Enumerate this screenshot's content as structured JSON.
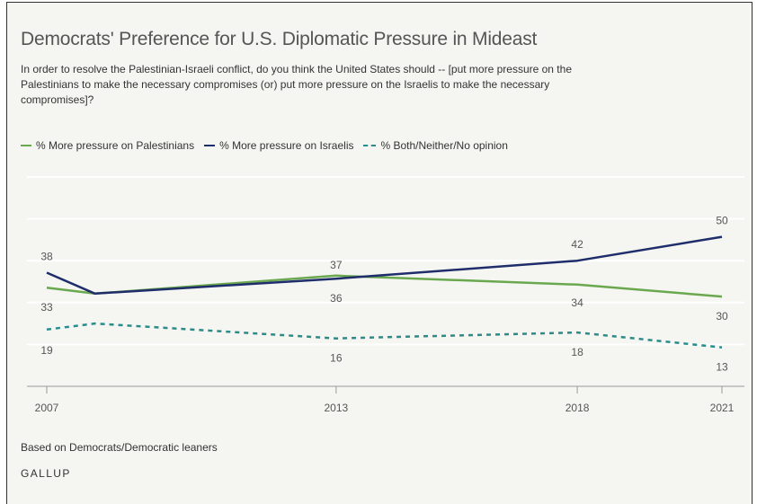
{
  "title": "Democrats' Preference for U.S. Diplomatic Pressure in Mideast",
  "question": "In order to resolve the Palestinian-Israeli conflict, do you think the United States should -- [put more pressure on the Palestinians to make the necessary compromises (or) put more pressure on the Israelis to make the necessary compromises]?",
  "footer_note": "Based on Democrats/Democratic leaners",
  "brand": "GALLUP",
  "colors": {
    "background": "#f5f6f1",
    "green": "#6aa84f",
    "navy": "#1f2d6b",
    "teal": "#2a8c8a",
    "grid": "#ffffff",
    "axis": "#999999"
  },
  "chart_data": {
    "type": "line",
    "x_tick_labels": [
      "2007",
      "2013",
      "2018",
      "2021"
    ],
    "xlim": [
      2007,
      2021
    ],
    "ylim": [
      0,
      70
    ],
    "grid": true,
    "legend_placement": "top-left",
    "series": [
      {
        "name": "% More pressure on Palestinians",
        "color": "#6aa84f",
        "style": "solid",
        "points": [
          {
            "x": 2007,
            "y": 33,
            "label": "33"
          },
          {
            "x": 2008,
            "y": 31,
            "label": ""
          },
          {
            "x": 2013,
            "y": 37,
            "label": "37"
          },
          {
            "x": 2018,
            "y": 34,
            "label": "34"
          },
          {
            "x": 2021,
            "y": 30,
            "label": "30"
          }
        ]
      },
      {
        "name": "% More pressure on Israelis",
        "color": "#1f2d6b",
        "style": "solid",
        "points": [
          {
            "x": 2007,
            "y": 38,
            "label": "38"
          },
          {
            "x": 2008,
            "y": 31,
            "label": ""
          },
          {
            "x": 2013,
            "y": 36,
            "label": "36"
          },
          {
            "x": 2018,
            "y": 42,
            "label": "42"
          },
          {
            "x": 2021,
            "y": 50,
            "label": "50"
          }
        ]
      },
      {
        "name": "% Both/Neither/No opinion",
        "color": "#2a8c8a",
        "style": "dashed",
        "points": [
          {
            "x": 2007,
            "y": 19,
            "label": "19"
          },
          {
            "x": 2008,
            "y": 21,
            "label": ""
          },
          {
            "x": 2013,
            "y": 16,
            "label": "16"
          },
          {
            "x": 2018,
            "y": 18,
            "label": "18"
          },
          {
            "x": 2021,
            "y": 13,
            "label": "13"
          }
        ]
      }
    ]
  }
}
